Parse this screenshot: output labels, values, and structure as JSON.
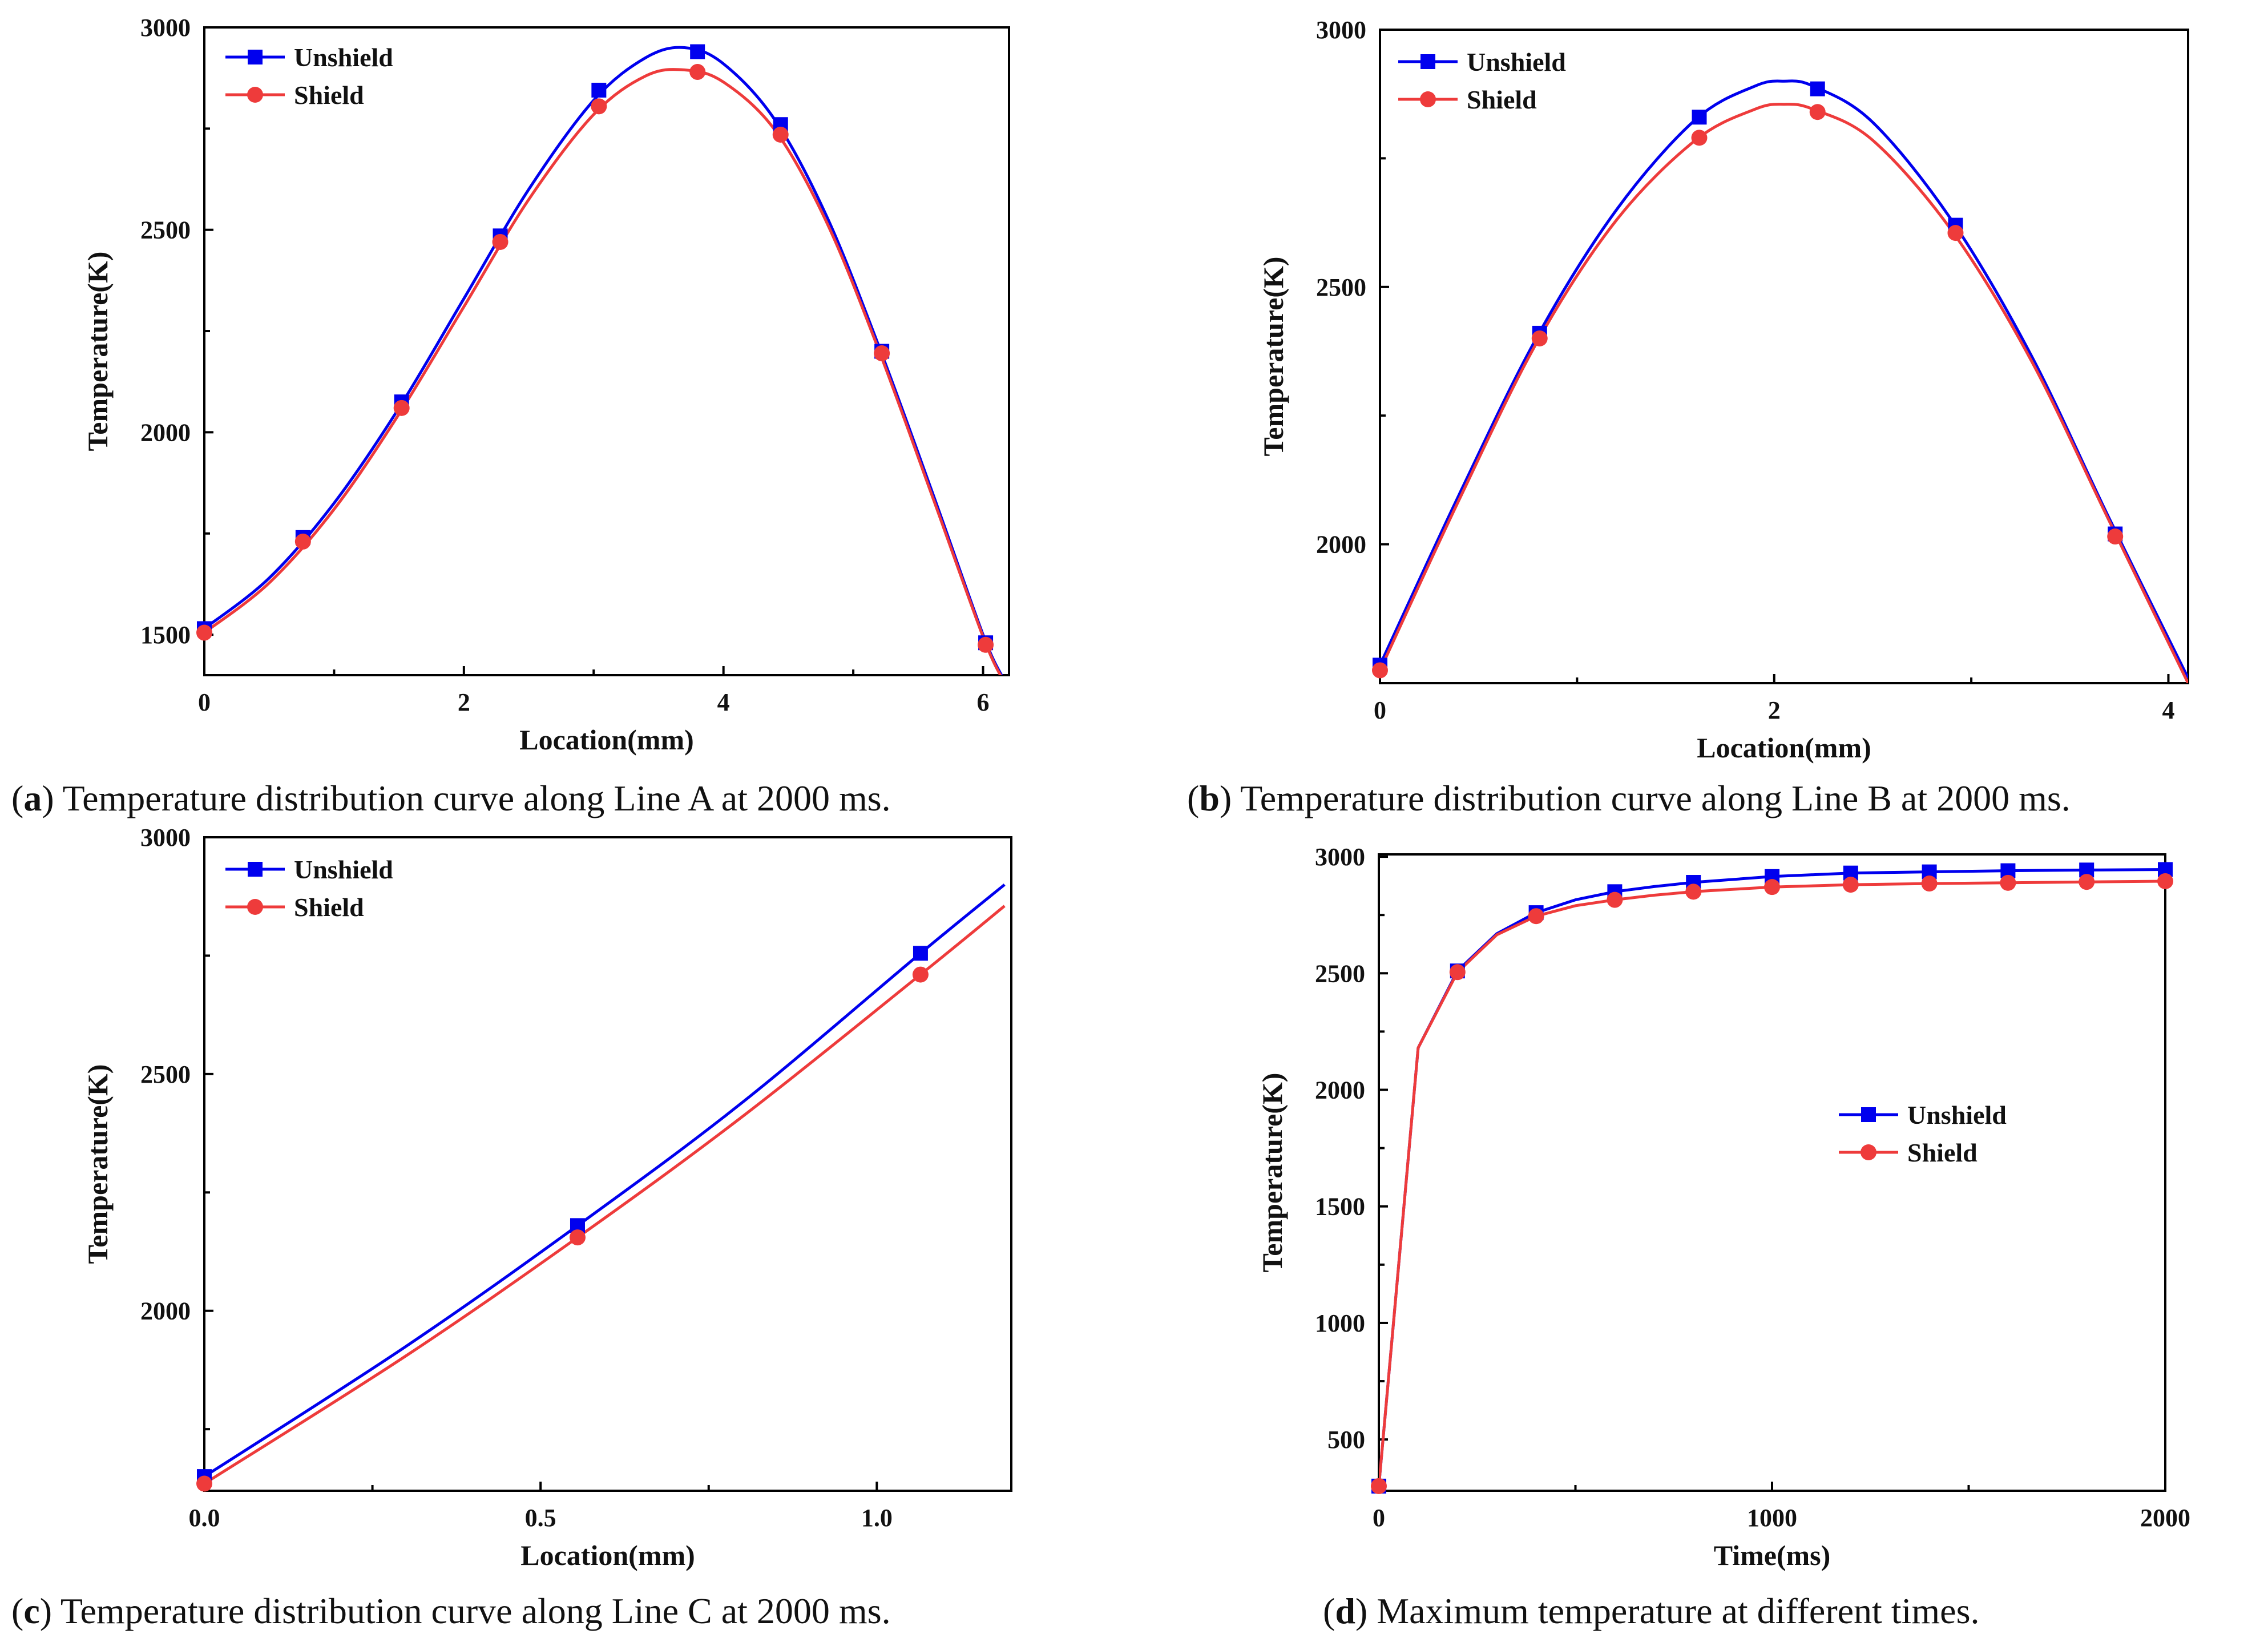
{
  "colors": {
    "unshield": "#0000ee",
    "shield": "#ee3b3b",
    "axis": "#000000"
  },
  "chart_data": [
    {
      "id": "a",
      "type": "line",
      "caption_letter": "a",
      "caption_text": "Temperature distribution curve along Line A at 2000 ms.",
      "xlabel": "Location(mm)",
      "ylabel": "Temperature(K)",
      "xlim": [
        0,
        6.2
      ],
      "ylim": [
        1400,
        3000
      ],
      "xticks": [
        0,
        2,
        4,
        6
      ],
      "xtick_labels": [
        "0",
        "2",
        "4",
        "6"
      ],
      "yticks": [
        1500,
        2000,
        2500,
        3000
      ],
      "ytick_labels": [
        "1500",
        "2000",
        "2500",
        "3000"
      ],
      "legend": {
        "position": "top-left",
        "entries": [
          "Unshield",
          "Shield"
        ]
      },
      "series": [
        {
          "name": "Unshield",
          "x": [
            0,
            0.76,
            1.52,
            2.28,
            3.04,
            3.8,
            4.44,
            5.22,
            6.02
          ],
          "y": [
            1515,
            1740,
            2075,
            2485,
            2845,
            2940,
            2760,
            2200,
            1480
          ],
          "curve": [
            [
              0,
              1515
            ],
            [
              0.5,
              1640
            ],
            [
              1,
              1825
            ],
            [
              1.5,
              2060
            ],
            [
              2,
              2330
            ],
            [
              2.5,
              2600
            ],
            [
              3,
              2820
            ],
            [
              3.4,
              2925
            ],
            [
              3.7,
              2950
            ],
            [
              4,
              2910
            ],
            [
              4.4,
              2770
            ],
            [
              4.8,
              2530
            ],
            [
              5.2,
              2210
            ],
            [
              5.6,
              1860
            ],
            [
              6,
              1500
            ],
            [
              6.15,
              1395
            ]
          ]
        },
        {
          "name": "Shield",
          "x": [
            0,
            0.76,
            1.52,
            2.28,
            3.04,
            3.8,
            4.44,
            5.22,
            6.02
          ],
          "y": [
            1505,
            1730,
            2060,
            2470,
            2805,
            2890,
            2735,
            2195,
            1475
          ],
          "curve": [
            [
              0,
              1505
            ],
            [
              0.5,
              1628
            ],
            [
              1,
              1810
            ],
            [
              1.5,
              2045
            ],
            [
              2,
              2310
            ],
            [
              2.5,
              2575
            ],
            [
              3,
              2785
            ],
            [
              3.4,
              2880
            ],
            [
              3.7,
              2895
            ],
            [
              4,
              2865
            ],
            [
              4.4,
              2745
            ],
            [
              4.8,
              2515
            ],
            [
              5.2,
              2200
            ],
            [
              5.6,
              1850
            ],
            [
              6,
              1495
            ],
            [
              6.15,
              1390
            ]
          ]
        }
      ]
    },
    {
      "id": "b",
      "type": "line",
      "caption_letter": "b",
      "caption_text": "Temperature distribution curve along Line B at 2000 ms.",
      "xlabel": "Location(mm)",
      "ylabel": "Temperature(K)",
      "xlim": [
        0,
        4.1
      ],
      "ylim": [
        1730,
        3000
      ],
      "xticks": [
        0,
        2,
        4
      ],
      "xtick_labels": [
        "0",
        "2",
        "4"
      ],
      "yticks": [
        2000,
        2500,
        3000
      ],
      "ytick_labels": [
        "2000",
        "2500",
        "3000"
      ],
      "legend": {
        "position": "top-left",
        "entries": [
          "Unshield",
          "Shield"
        ]
      },
      "series": [
        {
          "name": "Unshield",
          "x": [
            0,
            0.81,
            1.62,
            2.22,
            2.92,
            3.73
          ],
          "y": [
            1765,
            2410,
            2830,
            2885,
            2620,
            2020
          ],
          "curve": [
            [
              0,
              1765
            ],
            [
              0.4,
              2095
            ],
            [
              0.8,
              2405
            ],
            [
              1.2,
              2650
            ],
            [
              1.6,
              2825
            ],
            [
              1.9,
              2890
            ],
            [
              2.05,
              2900
            ],
            [
              2.2,
              2890
            ],
            [
              2.5,
              2820
            ],
            [
              2.9,
              2630
            ],
            [
              3.3,
              2370
            ],
            [
              3.7,
              2050
            ],
            [
              4.1,
              1740
            ]
          ]
        },
        {
          "name": "Shield",
          "x": [
            0,
            0.81,
            1.62,
            2.22,
            2.92,
            3.73
          ],
          "y": [
            1755,
            2400,
            2790,
            2840,
            2605,
            2015
          ],
          "curve": [
            [
              0,
              1755
            ],
            [
              0.4,
              2085
            ],
            [
              0.8,
              2395
            ],
            [
              1.2,
              2630
            ],
            [
              1.6,
              2785
            ],
            [
              1.9,
              2845
            ],
            [
              2.05,
              2855
            ],
            [
              2.2,
              2845
            ],
            [
              2.5,
              2785
            ],
            [
              2.9,
              2610
            ],
            [
              3.3,
              2360
            ],
            [
              3.7,
              2045
            ],
            [
              4.1,
              1730
            ]
          ]
        }
      ]
    },
    {
      "id": "c",
      "type": "line",
      "caption_letter": "c",
      "caption_text": "Temperature distribution curve along Line C at 2000 ms.",
      "xlabel": "Location(mm)",
      "ylabel": "Temperature(K)",
      "xlim": [
        0,
        1.2
      ],
      "ylim": [
        1620,
        3000
      ],
      "xticks": [
        0,
        0.5,
        1.0
      ],
      "xtick_labels": [
        "0.0",
        "0.5",
        "1.0"
      ],
      "yticks": [
        2000,
        2500,
        3000
      ],
      "ytick_labels": [
        "2000",
        "2500",
        "3000"
      ],
      "legend": {
        "position": "top-left",
        "entries": [
          "Unshield",
          "Shield"
        ]
      },
      "series": [
        {
          "name": "Unshield",
          "x": [
            0,
            0.555,
            1.065
          ],
          "y": [
            1650,
            2180,
            2755
          ],
          "curve": [
            [
              0,
              1650
            ],
            [
              0.3,
              1925
            ],
            [
              0.555,
              2180
            ],
            [
              0.8,
              2440
            ],
            [
              1.065,
              2755
            ],
            [
              1.19,
              2900
            ]
          ]
        },
        {
          "name": "Shield",
          "x": [
            0,
            0.555,
            1.065
          ],
          "y": [
            1635,
            2155,
            2710
          ],
          "curve": [
            [
              0,
              1635
            ],
            [
              0.3,
              1905
            ],
            [
              0.555,
              2155
            ],
            [
              0.8,
              2410
            ],
            [
              1.065,
              2710
            ],
            [
              1.19,
              2855
            ]
          ]
        }
      ]
    },
    {
      "id": "d",
      "type": "line",
      "caption_letter": "d",
      "caption_text": "Maximum temperature at different times.",
      "xlabel": "Time(ms)",
      "ylabel": "Temperature(K)",
      "xlim": [
        0,
        2000
      ],
      "ylim": [
        280,
        3010
      ],
      "xticks": [
        0,
        1000,
        2000
      ],
      "xtick_labels": [
        "0",
        "1000",
        "2000"
      ],
      "yticks": [
        500,
        1000,
        1500,
        2000,
        2500,
        3000
      ],
      "ytick_labels": [
        "500",
        "1000",
        "1500",
        "2000",
        "2500",
        "3000"
      ],
      "legend": {
        "position": "center-right",
        "entries": [
          "Unshield",
          "Shield"
        ]
      },
      "series": [
        {
          "name": "Unshield",
          "x": [
            0,
            200,
            400,
            600,
            800,
            1000,
            1200,
            1400,
            1600,
            1800,
            2000
          ],
          "y": [
            300,
            2510,
            2760,
            2850,
            2890,
            2915,
            2930,
            2935,
            2940,
            2943,
            2945
          ],
          "curve": [
            [
              0,
              300
            ],
            [
              100,
              2180
            ],
            [
              200,
              2510
            ],
            [
              300,
              2670
            ],
            [
              400,
              2760
            ],
            [
              500,
              2815
            ],
            [
              600,
              2850
            ],
            [
              700,
              2872
            ],
            [
              800,
              2890
            ],
            [
              1000,
              2915
            ],
            [
              1200,
              2930
            ],
            [
              1400,
              2935
            ],
            [
              1600,
              2940
            ],
            [
              1800,
              2943
            ],
            [
              2000,
              2945
            ]
          ]
        },
        {
          "name": "Shield",
          "x": [
            0,
            200,
            400,
            600,
            800,
            1000,
            1200,
            1400,
            1600,
            1800,
            2000
          ],
          "y": [
            300,
            2505,
            2745,
            2815,
            2850,
            2870,
            2880,
            2885,
            2888,
            2892,
            2895
          ],
          "curve": [
            [
              0,
              300
            ],
            [
              100,
              2180
            ],
            [
              200,
              2505
            ],
            [
              300,
              2665
            ],
            [
              400,
              2745
            ],
            [
              500,
              2790
            ],
            [
              600,
              2815
            ],
            [
              700,
              2835
            ],
            [
              800,
              2850
            ],
            [
              1000,
              2870
            ],
            [
              1200,
              2880
            ],
            [
              1400,
              2885
            ],
            [
              1600,
              2888
            ],
            [
              1800,
              2892
            ],
            [
              2000,
              2895
            ]
          ]
        }
      ]
    }
  ]
}
